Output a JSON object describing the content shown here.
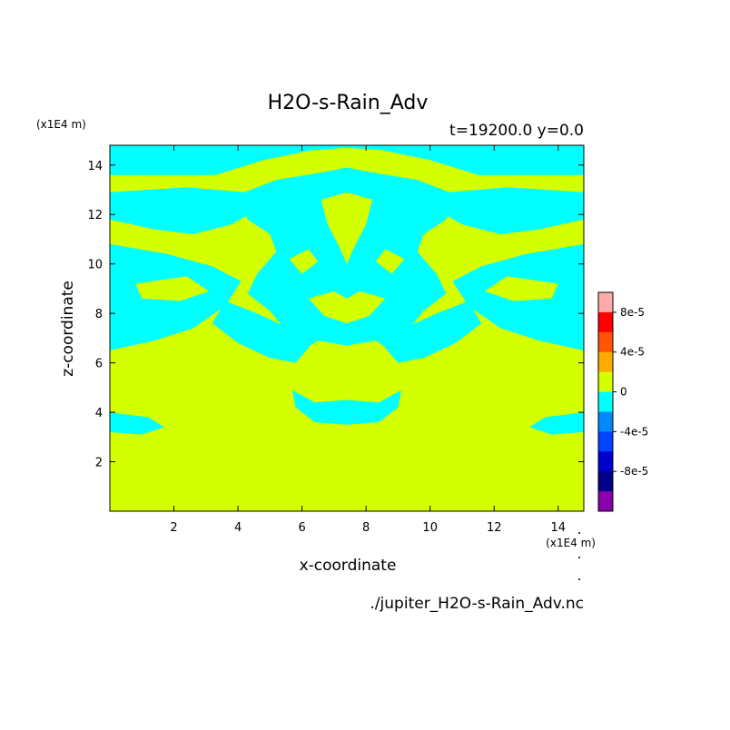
{
  "chart_data": {
    "type": "heatmap",
    "title": "H2O-s-Rain_Adv",
    "subtitle": "t=19200.0 y=0.0",
    "xlabel": "x-coordinate",
    "ylabel": "z-coordinate",
    "x_unit": "(x1E4 m)",
    "y_unit": "(x1E4 m)",
    "source_file": "./jupiter_H2O-s-Rain_Adv.nc",
    "xlim": [
      0,
      14.8
    ],
    "ylim": [
      0,
      14.8
    ],
    "x_ticks": [
      2,
      4,
      6,
      8,
      10,
      12,
      14
    ],
    "y_ticks": [
      2,
      4,
      6,
      8,
      10,
      12,
      14
    ],
    "colors": {
      "zero_level": "#d4ff00",
      "negative_small": "#00ffff"
    },
    "field_levels": [
      "0",
      "-4e-5 < v < 0"
    ],
    "colorbar": {
      "labels": [
        "8e-5",
        "4e-5",
        "0",
        "-4e-5",
        "-8e-5"
      ],
      "levels": [
        {
          "color": "#ffaaaa"
        },
        {
          "color": "#ff0000"
        },
        {
          "color": "#ff5500"
        },
        {
          "color": "#ffaa00"
        },
        {
          "color": "#d4ff00"
        },
        {
          "color": "#00ffff"
        },
        {
          "color": "#0088ff"
        },
        {
          "color": "#0044ff"
        },
        {
          "color": "#0000cc"
        },
        {
          "color": "#000088"
        },
        {
          "color": "#8800aa"
        }
      ]
    },
    "regions_negative": [
      {
        "name": "top-band",
        "points": [
          [
            0,
            14.8
          ],
          [
            14.8,
            14.8
          ],
          [
            14.8,
            13.6
          ],
          [
            11.5,
            13.6
          ],
          [
            10,
            14.2
          ],
          [
            8.5,
            14.6
          ],
          [
            7.4,
            14.7
          ],
          [
            6.3,
            14.6
          ],
          [
            4.8,
            14.2
          ],
          [
            3.3,
            13.6
          ],
          [
            0,
            13.6
          ]
        ]
      },
      {
        "name": "center-core",
        "points": [
          [
            5.2,
            13.4
          ],
          [
            6.6,
            13.7
          ],
          [
            7.4,
            13.9
          ],
          [
            8.2,
            13.7
          ],
          [
            9.6,
            13.4
          ],
          [
            10.8,
            12.8
          ],
          [
            10.5,
            11.8
          ],
          [
            9.8,
            11.2
          ],
          [
            9.6,
            10.5
          ],
          [
            10.2,
            9.6
          ],
          [
            10.5,
            8.8
          ],
          [
            9.8,
            8.1
          ],
          [
            9.3,
            7.3
          ],
          [
            9.5,
            6.6
          ],
          [
            9.0,
            6.3
          ],
          [
            8.3,
            6.9
          ],
          [
            7.4,
            6.7
          ],
          [
            6.5,
            6.9
          ],
          [
            5.8,
            6.3
          ],
          [
            5.3,
            6.6
          ],
          [
            5.5,
            7.3
          ],
          [
            5.0,
            8.1
          ],
          [
            4.3,
            8.8
          ],
          [
            4.6,
            9.6
          ],
          [
            5.2,
            10.5
          ],
          [
            5.0,
            11.2
          ],
          [
            4.3,
            11.8
          ],
          [
            4.0,
            12.8
          ]
        ]
      },
      {
        "name": "left-wing-upper",
        "points": [
          [
            0,
            12.9
          ],
          [
            2.4,
            13.1
          ],
          [
            4.2,
            12.9
          ],
          [
            4.6,
            12.2
          ],
          [
            3.8,
            11.6
          ],
          [
            2.6,
            11.2
          ],
          [
            1.4,
            11.4
          ],
          [
            0,
            11.8
          ]
        ]
      },
      {
        "name": "left-wing-lower",
        "points": [
          [
            0,
            10.8
          ],
          [
            1.8,
            10.4
          ],
          [
            3.2,
            9.9
          ],
          [
            4.1,
            9.3
          ],
          [
            3.6,
            8.3
          ],
          [
            2.6,
            7.4
          ],
          [
            1.4,
            6.9
          ],
          [
            0,
            6.5
          ]
        ]
      },
      {
        "name": "right-wing-upper",
        "points": [
          [
            14.8,
            12.9
          ],
          [
            12.4,
            13.1
          ],
          [
            10.6,
            12.9
          ],
          [
            10.2,
            12.2
          ],
          [
            11.0,
            11.6
          ],
          [
            12.2,
            11.2
          ],
          [
            13.4,
            11.4
          ],
          [
            14.8,
            11.8
          ]
        ]
      },
      {
        "name": "right-wing-lower",
        "points": [
          [
            14.8,
            10.8
          ],
          [
            13.0,
            10.4
          ],
          [
            11.6,
            9.9
          ],
          [
            10.7,
            9.3
          ],
          [
            11.2,
            8.3
          ],
          [
            12.2,
            7.4
          ],
          [
            13.4,
            6.9
          ],
          [
            14.8,
            6.5
          ]
        ]
      },
      {
        "name": "left-lobe",
        "points": [
          [
            3.6,
            8.5
          ],
          [
            4.6,
            8.0
          ],
          [
            5.6,
            7.4
          ],
          [
            6.2,
            6.6
          ],
          [
            5.8,
            6.0
          ],
          [
            5.0,
            6.2
          ],
          [
            4.0,
            6.8
          ],
          [
            3.2,
            7.6
          ]
        ]
      },
      {
        "name": "right-lobe",
        "points": [
          [
            11.2,
            8.5
          ],
          [
            10.2,
            8.0
          ],
          [
            9.2,
            7.4
          ],
          [
            8.6,
            6.6
          ],
          [
            9.0,
            6.0
          ],
          [
            9.8,
            6.2
          ],
          [
            10.8,
            6.8
          ],
          [
            11.6,
            7.6
          ]
        ]
      },
      {
        "name": "lower-arch",
        "points": [
          [
            5.7,
            4.9
          ],
          [
            6.4,
            4.4
          ],
          [
            7.4,
            4.5
          ],
          [
            8.4,
            4.4
          ],
          [
            9.1,
            4.9
          ],
          [
            9.0,
            4.2
          ],
          [
            8.4,
            3.6
          ],
          [
            7.4,
            3.5
          ],
          [
            6.4,
            3.6
          ],
          [
            5.8,
            4.2
          ]
        ]
      },
      {
        "name": "left-low-streak",
        "points": [
          [
            0,
            4.0
          ],
          [
            1.2,
            3.8
          ],
          [
            1.7,
            3.4
          ],
          [
            1.0,
            3.1
          ],
          [
            0,
            3.2
          ]
        ]
      },
      {
        "name": "right-low-streak",
        "points": [
          [
            14.8,
            4.0
          ],
          [
            13.6,
            3.8
          ],
          [
            13.1,
            3.4
          ],
          [
            13.8,
            3.1
          ],
          [
            14.8,
            3.2
          ]
        ]
      }
    ],
    "regions_zero_inner": [
      {
        "name": "center-mask",
        "points": [
          [
            6.6,
            12.6
          ],
          [
            7.4,
            12.9
          ],
          [
            8.2,
            12.6
          ],
          [
            8.0,
            11.6
          ],
          [
            7.6,
            10.6
          ],
          [
            7.4,
            10.0
          ],
          [
            7.2,
            10.6
          ],
          [
            6.8,
            11.6
          ]
        ]
      },
      {
        "name": "center-crown",
        "points": [
          [
            6.2,
            8.6
          ],
          [
            7.0,
            8.9
          ],
          [
            7.4,
            8.6
          ],
          [
            7.8,
            8.9
          ],
          [
            8.6,
            8.6
          ],
          [
            8.1,
            7.9
          ],
          [
            7.4,
            7.6
          ],
          [
            6.7,
            7.9
          ]
        ]
      },
      {
        "name": "left-wing-lower-notch",
        "points": [
          [
            0.8,
            9.2
          ],
          [
            2.4,
            9.5
          ],
          [
            3.1,
            8.9
          ],
          [
            2.2,
            8.5
          ],
          [
            1.0,
            8.6
          ]
        ]
      },
      {
        "name": "right-wing-lower-notch",
        "points": [
          [
            14.0,
            9.2
          ],
          [
            12.4,
            9.5
          ],
          [
            11.7,
            8.9
          ],
          [
            12.6,
            8.5
          ],
          [
            13.8,
            8.6
          ]
        ]
      },
      {
        "name": "left-ear",
        "points": [
          [
            5.6,
            10.2
          ],
          [
            6.2,
            10.6
          ],
          [
            6.5,
            10.1
          ],
          [
            6.0,
            9.6
          ]
        ]
      },
      {
        "name": "right-ear",
        "points": [
          [
            9.2,
            10.2
          ],
          [
            8.6,
            10.6
          ],
          [
            8.3,
            10.1
          ],
          [
            8.8,
            9.6
          ]
        ]
      }
    ]
  }
}
